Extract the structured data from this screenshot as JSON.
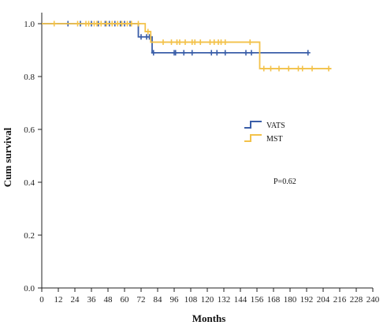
{
  "chart_data": {
    "type": "line",
    "subtype": "kaplan-meier",
    "xlabel": "Months",
    "ylabel": "Cum survival",
    "xlim": [
      0,
      240
    ],
    "ylim": [
      0.0,
      1.0
    ],
    "x_ticks": [
      0,
      12,
      24,
      36,
      48,
      60,
      72,
      84,
      96,
      108,
      120,
      132,
      144,
      156,
      168,
      180,
      192,
      204,
      216,
      228,
      240
    ],
    "y_ticks": [
      0.0,
      0.2,
      0.4,
      0.6,
      0.8,
      1.0
    ],
    "y_tick_labels": [
      "0.0",
      "0.2",
      "0.4",
      "0.6",
      "0.8",
      "1.0"
    ],
    "grid": false,
    "legend_position": "upper-right",
    "annotation": "P=0.62",
    "series": [
      {
        "name": "VATS",
        "color": "#3a5ea8",
        "steps": [
          [
            0,
            1.0
          ],
          [
            70,
            0.95
          ],
          [
            80,
            0.89
          ],
          [
            193,
            0.89
          ]
        ],
        "censored": [
          [
            19,
            1.0
          ],
          [
            28,
            1.0
          ],
          [
            36,
            1.0
          ],
          [
            41,
            1.0
          ],
          [
            46,
            1.0
          ],
          [
            49,
            1.0
          ],
          [
            53,
            1.0
          ],
          [
            57,
            1.0
          ],
          [
            60,
            1.0
          ],
          [
            64,
            1.0
          ],
          [
            72,
            0.95
          ],
          [
            76,
            0.95
          ],
          [
            78,
            0.95
          ],
          [
            81,
            0.89
          ],
          [
            96,
            0.89
          ],
          [
            97,
            0.89
          ],
          [
            103,
            0.89
          ],
          [
            109,
            0.89
          ],
          [
            123,
            0.89
          ],
          [
            127,
            0.89
          ],
          [
            133,
            0.89
          ],
          [
            148,
            0.89
          ],
          [
            152,
            0.89
          ],
          [
            193,
            0.89
          ]
        ]
      },
      {
        "name": "MST",
        "color": "#f3c24a",
        "steps": [
          [
            0,
            1.0
          ],
          [
            75,
            0.97
          ],
          [
            79,
            0.93
          ],
          [
            158,
            0.83
          ],
          [
            210,
            0.83
          ]
        ],
        "censored": [
          [
            9,
            1.0
          ],
          [
            26,
            1.0
          ],
          [
            32,
            1.0
          ],
          [
            34,
            1.0
          ],
          [
            38,
            1.0
          ],
          [
            40,
            1.0
          ],
          [
            43,
            1.0
          ],
          [
            47,
            1.0
          ],
          [
            51,
            1.0
          ],
          [
            55,
            1.0
          ],
          [
            58,
            1.0
          ],
          [
            62,
            1.0
          ],
          [
            65,
            1.0
          ],
          [
            70,
            1.0
          ],
          [
            77,
            0.97
          ],
          [
            88,
            0.93
          ],
          [
            94,
            0.93
          ],
          [
            98,
            0.93
          ],
          [
            100,
            0.93
          ],
          [
            104,
            0.93
          ],
          [
            109,
            0.93
          ],
          [
            111,
            0.93
          ],
          [
            115,
            0.93
          ],
          [
            122,
            0.93
          ],
          [
            125,
            0.93
          ],
          [
            128,
            0.93
          ],
          [
            130,
            0.93
          ],
          [
            133,
            0.93
          ],
          [
            151,
            0.93
          ],
          [
            161,
            0.83
          ],
          [
            166,
            0.83
          ],
          [
            172,
            0.83
          ],
          [
            179,
            0.83
          ],
          [
            186,
            0.83
          ],
          [
            189,
            0.83
          ],
          [
            196,
            0.83
          ],
          [
            208,
            0.83
          ]
        ]
      }
    ]
  }
}
